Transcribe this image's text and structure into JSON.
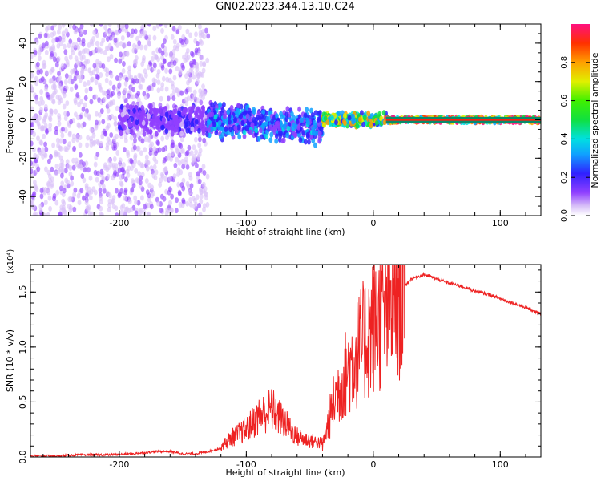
{
  "title": "GN02.2023.344.13.10.C24",
  "colors": {
    "spec_dense": "#6a1aff",
    "spec_light": "#b48cf0",
    "snr_line": "#ee2222",
    "axis": "#000000"
  },
  "colorbar": {
    "label": "Normalized spectral amplitude",
    "range": [
      0,
      1
    ],
    "ticks": [
      0.0,
      0.2,
      0.4,
      0.6,
      0.8
    ],
    "tick_labels": [
      "0.0",
      "0.2",
      "0.4",
      "0.6",
      "0.8"
    ],
    "colormap": "rainbow"
  },
  "chart_data": [
    {
      "type": "heatmap",
      "title": "GN02.2023.344.13.10.C24",
      "xlabel": "Height of straight line (km)",
      "ylabel": "Frequency (Hz)",
      "xlim": [
        -270,
        132
      ],
      "ylim": [
        -50,
        50
      ],
      "xticks": [
        -200,
        -100,
        0,
        100
      ],
      "xtick_labels": [
        "-200",
        "-100",
        "0",
        "100"
      ],
      "yticks": [
        -40,
        -20,
        0,
        20,
        40
      ],
      "ytick_labels": [
        "-40",
        "-20",
        "0",
        "20",
        "40"
      ],
      "regions": [
        {
          "x_range": [
            -270,
            -130
          ],
          "freq_range": [
            -50,
            50
          ],
          "amplitude": 0.15,
          "pattern": "scattered"
        },
        {
          "x_range": [
            -200,
            -120
          ],
          "freq_range": [
            -8,
            8
          ],
          "amplitude": 0.25
        },
        {
          "x_range": [
            -130,
            -40
          ],
          "freq_range": [
            -12,
            8
          ],
          "amplitude": 0.4
        },
        {
          "x_range": [
            -40,
            10
          ],
          "freq_range": [
            -4,
            4
          ],
          "amplitude": 0.7
        },
        {
          "x_range": [
            10,
            132
          ],
          "freq_range": [
            -1.5,
            1.5
          ],
          "amplitude": 0.9
        }
      ],
      "center_frequency": 0
    },
    {
      "type": "line",
      "xlabel": "Height of straight line (km)",
      "ylabel": "SNR (10 * v/v)",
      "y_multiplier": "(x10⁴)",
      "xlim": [
        -270,
        132
      ],
      "ylim": [
        0,
        1.75
      ],
      "xticks": [
        -200,
        -100,
        0,
        100
      ],
      "xtick_labels": [
        "-200",
        "-100",
        "0",
        "100"
      ],
      "yticks": [
        0,
        0.5,
        1.0,
        1.5
      ],
      "ytick_labels": [
        "0.0",
        "0.5",
        "1.0",
        "1.5"
      ],
      "series": [
        {
          "x": [
            -270,
            -250,
            -230,
            -210,
            -190,
            -170,
            -160,
            -150,
            -140,
            -130,
            -120,
            -110,
            -100,
            -90,
            -80,
            -70,
            -60,
            -50,
            -40,
            -30,
            -20,
            -10,
            0,
            10,
            20,
            30,
            40,
            50,
            60,
            70,
            80,
            90,
            100,
            110,
            120,
            132
          ],
          "y": [
            0.01,
            0.01,
            0.02,
            0.02,
            0.03,
            0.05,
            0.05,
            0.03,
            0.03,
            0.05,
            0.08,
            0.15,
            0.2,
            0.3,
            0.35,
            0.25,
            0.15,
            0.12,
            0.1,
            0.55,
            0.8,
            1.0,
            1.2,
            1.3,
            1.5,
            1.62,
            1.66,
            1.62,
            1.58,
            1.55,
            1.51,
            1.48,
            1.44,
            1.4,
            1.36,
            1.3
          ]
        }
      ]
    }
  ]
}
